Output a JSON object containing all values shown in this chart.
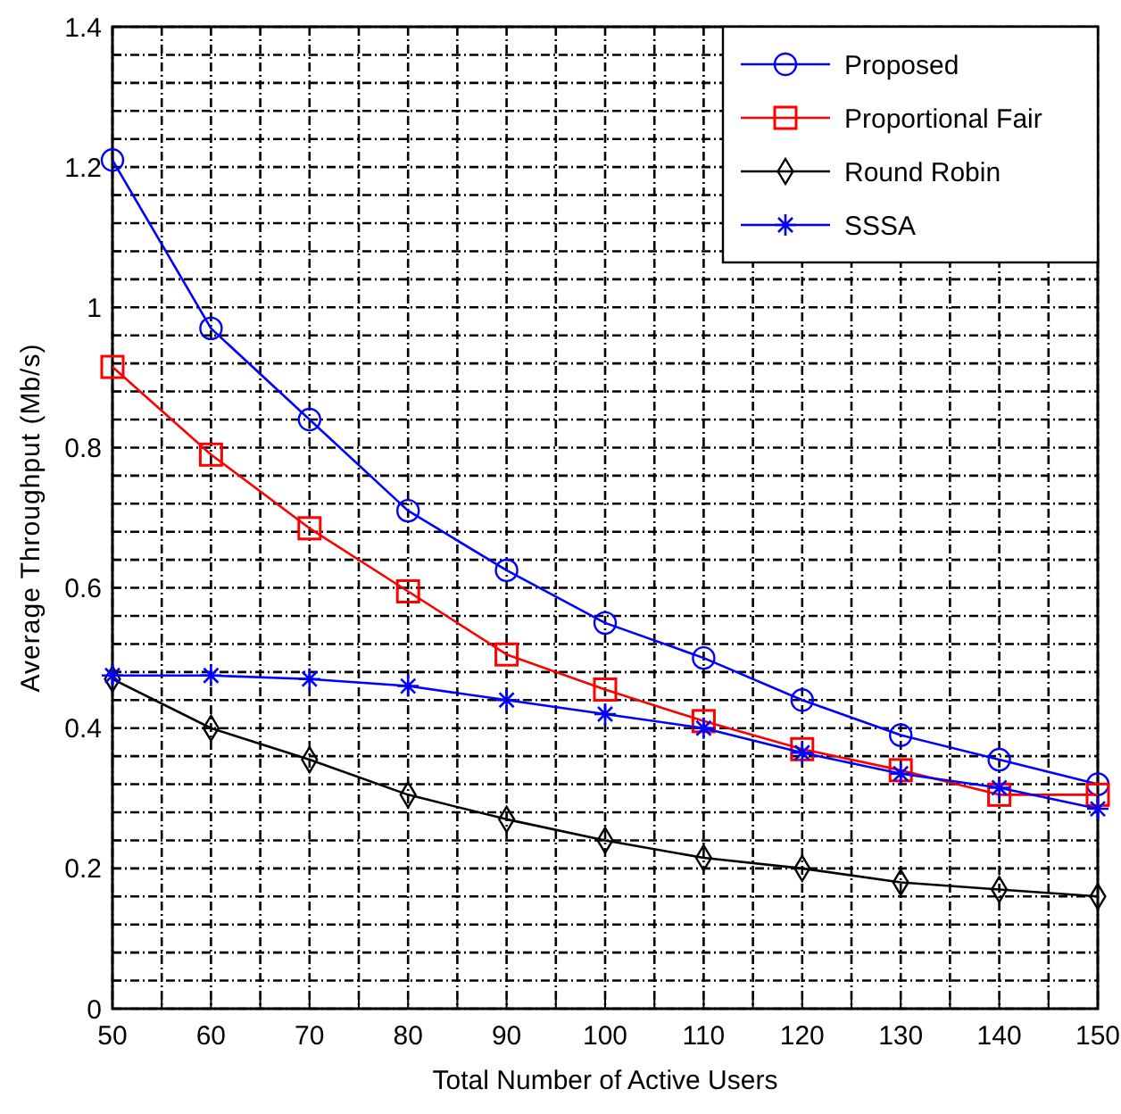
{
  "chart_data": {
    "type": "line",
    "xlabel": "Total Number of Active Users",
    "ylabel": "Average Throughput (Mb/s)",
    "x": [
      50,
      60,
      70,
      80,
      90,
      100,
      110,
      120,
      130,
      140,
      150
    ],
    "series": [
      {
        "name": "Proposed",
        "color": "#0000ff",
        "marker": "circle",
        "values": [
          1.21,
          0.97,
          0.84,
          0.71,
          0.625,
          0.55,
          0.5,
          0.44,
          0.39,
          0.355,
          0.32
        ]
      },
      {
        "name": "Proportional Fair",
        "color": "#ff0000",
        "marker": "square",
        "values": [
          0.915,
          0.79,
          0.685,
          0.595,
          0.505,
          0.455,
          0.41,
          0.37,
          0.34,
          0.305,
          0.305
        ]
      },
      {
        "name": "Round Robin",
        "color": "#000000",
        "marker": "diamond",
        "values": [
          0.47,
          0.4,
          0.355,
          0.305,
          0.27,
          0.24,
          0.215,
          0.2,
          0.18,
          0.17,
          0.16
        ]
      },
      {
        "name": "SSSA",
        "color": "#0000ff",
        "marker": "cross",
        "values": [
          0.475,
          0.475,
          0.47,
          0.46,
          0.44,
          0.42,
          0.4,
          0.365,
          0.335,
          0.315,
          0.285
        ]
      }
    ],
    "xlim": [
      50,
      150
    ],
    "xticks": [
      50,
      {
        "value": 55,
        "label": null
      },
      60,
      {
        "value": 65,
        "label": null
      },
      70,
      {
        "value": 75,
        "label": null
      },
      80,
      {
        "value": 85,
        "label": null
      },
      90,
      {
        "value": 95,
        "label": null
      },
      100,
      {
        "value": 105,
        "label": null
      },
      110,
      {
        "value": 115,
        "label": null
      },
      120,
      {
        "value": 125,
        "label": null
      },
      130,
      {
        "value": 135,
        "label": null
      },
      140,
      {
        "value": 145,
        "label": null
      },
      150
    ],
    "ylim": [
      0,
      1.4
    ],
    "yticks": [
      0,
      {
        "value": 0.04,
        "label": null
      },
      {
        "value": 0.08,
        "label": null
      },
      {
        "value": 0.12,
        "label": null
      },
      {
        "value": 0.16,
        "label": null
      },
      0.2,
      {
        "value": 0.24,
        "label": null
      },
      {
        "value": 0.28,
        "label": null
      },
      {
        "value": 0.32,
        "label": null
      },
      {
        "value": 0.36,
        "label": null
      },
      0.4,
      {
        "value": 0.44,
        "label": null
      },
      {
        "value": 0.48,
        "label": null
      },
      {
        "value": 0.52,
        "label": null
      },
      {
        "value": 0.56,
        "label": null
      },
      0.6,
      {
        "value": 0.64,
        "label": null
      },
      {
        "value": 0.68,
        "label": null
      },
      {
        "value": 0.72,
        "label": null
      },
      {
        "value": 0.76,
        "label": null
      },
      0.8,
      {
        "value": 0.84,
        "label": null
      },
      {
        "value": 0.88,
        "label": null
      },
      {
        "value": 0.92,
        "label": null
      },
      {
        "value": 0.96,
        "label": null
      },
      1,
      {
        "value": 1.04,
        "label": null
      },
      {
        "value": 1.08,
        "label": null
      },
      {
        "value": 1.12,
        "label": null
      },
      {
        "value": 1.16,
        "label": null
      },
      1.2,
      {
        "value": 1.24,
        "label": null
      },
      {
        "value": 1.28,
        "label": null
      },
      {
        "value": 1.32,
        "label": null
      },
      {
        "value": 1.36,
        "label": null
      },
      1.4
    ],
    "grid": true,
    "legend": "top right",
    "line_style": "solid"
  }
}
